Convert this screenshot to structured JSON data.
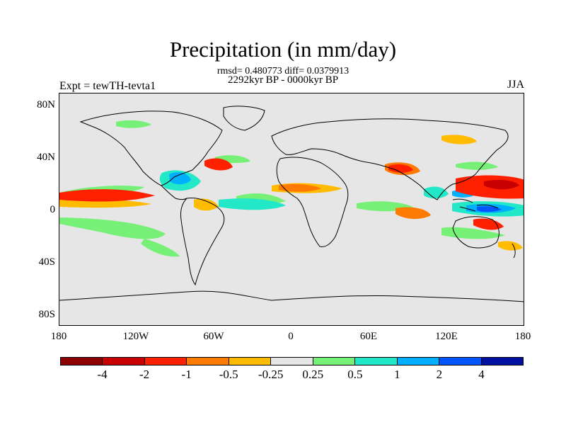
{
  "title": "Precipitation (in mm/day)",
  "stats": "rmsd= 0.480773 diff= 0.0379913",
  "period": "2292kyr BP - 0000kyr BP",
  "experiment": "Expt = tewTH-tevta1",
  "season": "JJA",
  "lat_labels": [
    "80N",
    "40N",
    "0",
    "40S",
    "80S"
  ],
  "lon_labels": [
    "180",
    "120W",
    "60W",
    "0",
    "60E",
    "120E",
    "180"
  ],
  "colorbar": {
    "colors": [
      "#8b0000",
      "#c80000",
      "#ff2000",
      "#ff7a00",
      "#ffbb00",
      "#e6e6e6",
      "#77f077",
      "#22e8c8",
      "#00b0ff",
      "#0055ff",
      "#0010a0"
    ],
    "labels": [
      "-4",
      "-2",
      "-1",
      "-0.5",
      "-0.25",
      "0.25",
      "0.5",
      "1",
      "2",
      "4"
    ]
  },
  "palette": {
    "background": "#e6e6e6",
    "coast": "#000000"
  }
}
